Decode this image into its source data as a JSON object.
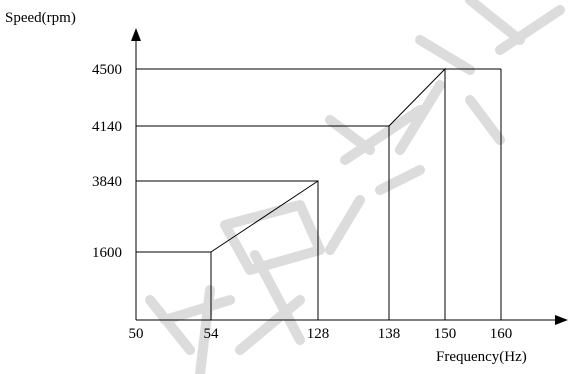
{
  "chart_data": {
    "type": "line",
    "ylabel": "Speed(rpm)",
    "xlabel": "Frequency(Hz)",
    "x_ticks": [
      "50",
      "54",
      "128",
      "138",
      "150",
      "160"
    ],
    "y_ticks": [
      "4500",
      "4140",
      "3840",
      "1600"
    ],
    "series": [
      {
        "x": [
          54,
          54,
          128,
          128,
          138,
          138,
          150,
          150,
          160,
          160
        ],
        "y": [
          1050,
          1600,
          3840,
          1050,
          1050,
          4140,
          4500,
          1050,
          1050,
          4500
        ]
      }
    ],
    "reference_lines": [
      {
        "y": 1600,
        "x_to": 54
      },
      {
        "y": 3840,
        "x_to": 128
      },
      {
        "y": 4140,
        "x_to": 138
      },
      {
        "y": 4500,
        "x_to": 160
      }
    ]
  }
}
